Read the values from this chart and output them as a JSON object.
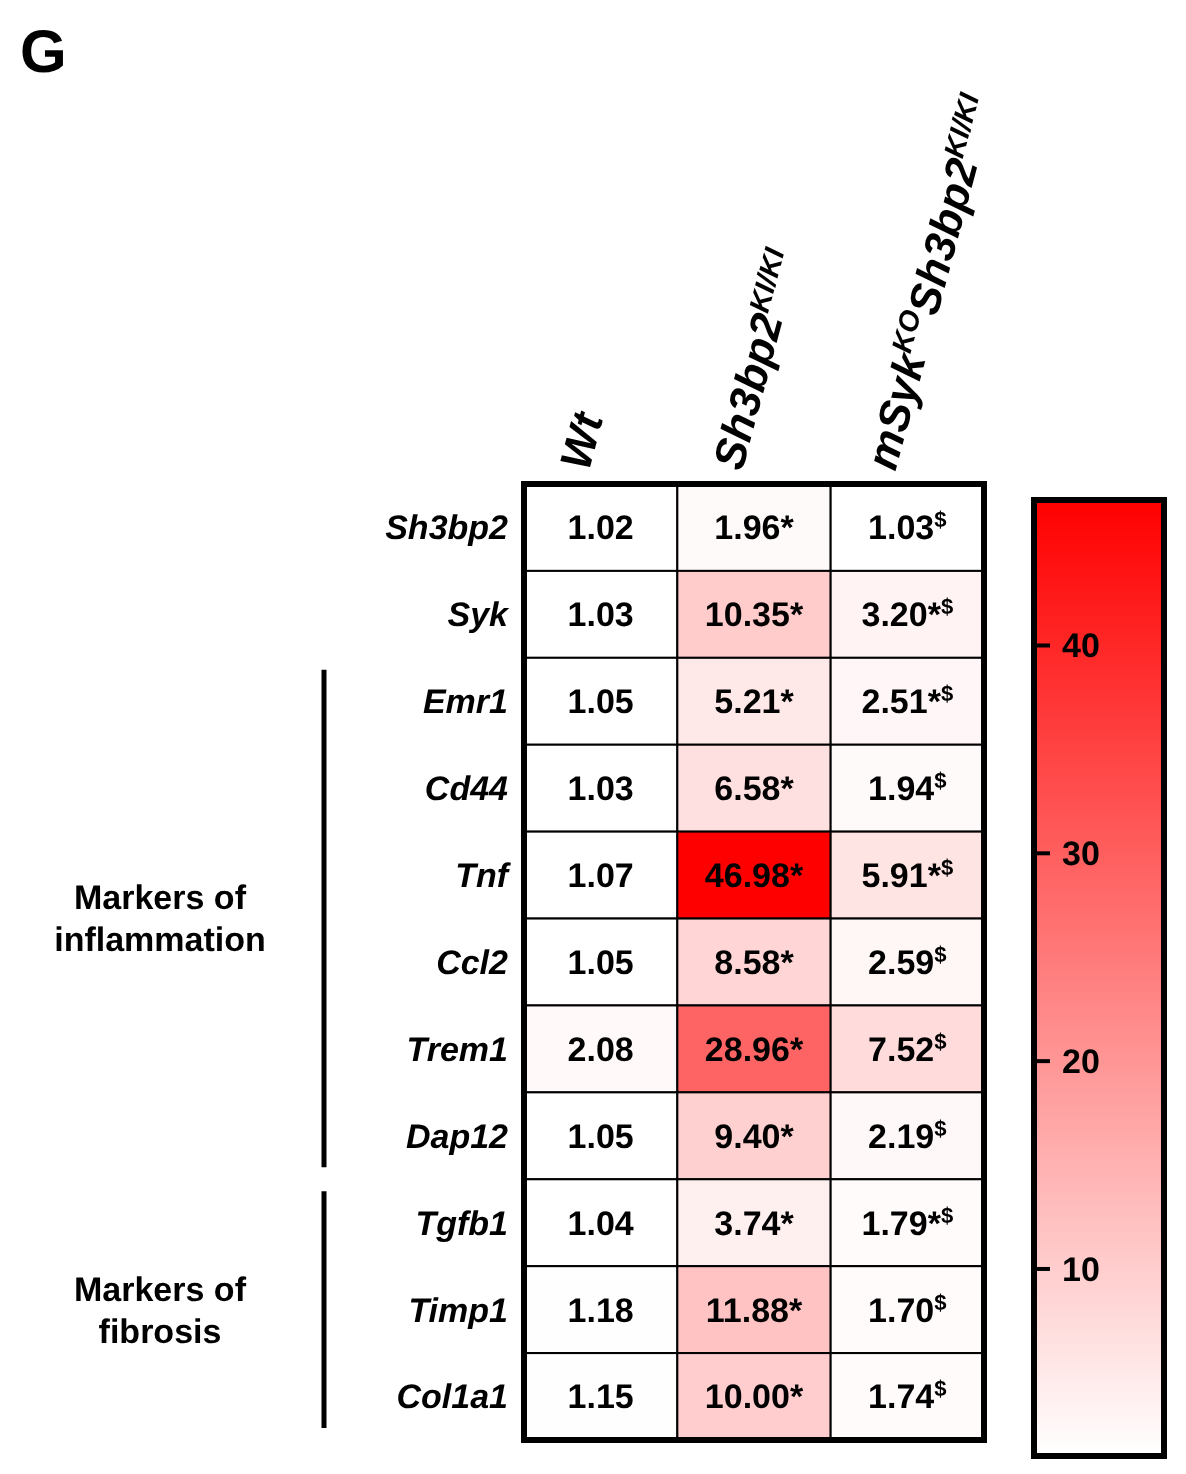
{
  "chart_data": {
    "type": "heatmap",
    "title": "G",
    "categories": [
      "Wt",
      "Sh3bp2$^{KI/KI}$",
      "mSyk$^{KO}$Sh3bp2$^{KI/KI}$"
    ],
    "y_categories": [
      "Sh3bp2",
      "Syk",
      "Emr1",
      "Cd44",
      "Tnf",
      "Ccl2",
      "Trem1",
      "Dap12",
      "Tgfb1",
      "Timp1",
      "Col1a1"
    ],
    "cells": [
      [
        1.02,
        1.96,
        1.03
      ],
      [
        1.03,
        10.35,
        3.2
      ],
      [
        1.05,
        5.21,
        2.51
      ],
      [
        1.03,
        6.58,
        1.94
      ],
      [
        1.07,
        46.98,
        5.91
      ],
      [
        1.05,
        8.58,
        2.59
      ],
      [
        2.08,
        28.96,
        7.52
      ],
      [
        1.05,
        9.4,
        2.19
      ],
      [
        1.04,
        3.74,
        1.79
      ],
      [
        1.18,
        11.88,
        1.7
      ],
      [
        1.15,
        10.0,
        1.74
      ]
    ],
    "cell_labels": [
      [
        "1.02",
        "1.96*",
        "1.03$^{$}$"
      ],
      [
        "1.03",
        "10.35*",
        "3.20*$^{$}$"
      ],
      [
        "1.05",
        "5.21*",
        "2.51*$^{$}$"
      ],
      [
        "1.03",
        "6.58*",
        "1.94$^{$}$"
      ],
      [
        "1.07",
        "46.98*",
        "5.91*$^{$}$"
      ],
      [
        "1.05",
        "8.58*",
        "2.59$^{$}$"
      ],
      [
        "2.08",
        "28.96*",
        "7.52$^{$}$"
      ],
      [
        "1.05",
        "9.40*",
        "2.19$^{$}$"
      ],
      [
        "1.04",
        "3.74*",
        "1.79*$^{$}$"
      ],
      [
        "1.18",
        "11.88*",
        "1.70$^{$}$"
      ],
      [
        "1.15",
        "10.00*",
        "1.74$^{$}$"
      ]
    ],
    "clim": [
      1,
      47
    ],
    "cticks": [
      10,
      20,
      30,
      40
    ],
    "annotations": [
      "Markers of inflammation",
      "Markers of fibrosis"
    ]
  }
}
